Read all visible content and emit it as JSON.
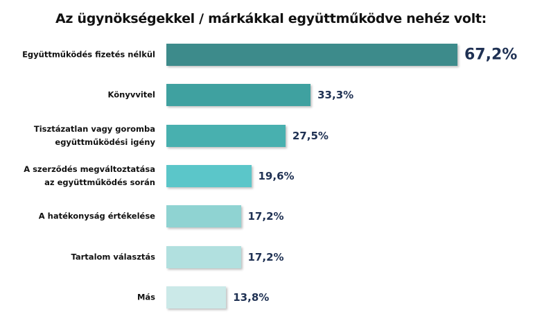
{
  "chart_data": {
    "type": "bar",
    "orientation": "horizontal",
    "title": "Az ügynökségekkel / márkákkal együttműködve nehéz volt:",
    "categories": [
      "Együttműködés fizetés nélkül",
      "Könyvvitel",
      "Tisztázatlan vagy goromba\negyüttműködési igény",
      "A szerződés megváltoztatása\naz együttműködés során",
      "A hatékonyság értékelése",
      "Tartalom választás",
      "Más"
    ],
    "values": [
      67.2,
      33.3,
      27.5,
      19.6,
      17.2,
      17.2,
      13.8
    ],
    "value_labels": [
      "67,2%",
      "33,3%",
      "27,5%",
      "19,6%",
      "17,2%",
      "17,2%",
      "13,8%"
    ],
    "colors": [
      "#3d8b8b",
      "#3fa1a0",
      "#48b0af",
      "#5bc6c9",
      "#8fd3d2",
      "#b1e0df",
      "#cbe9e8"
    ]
  }
}
